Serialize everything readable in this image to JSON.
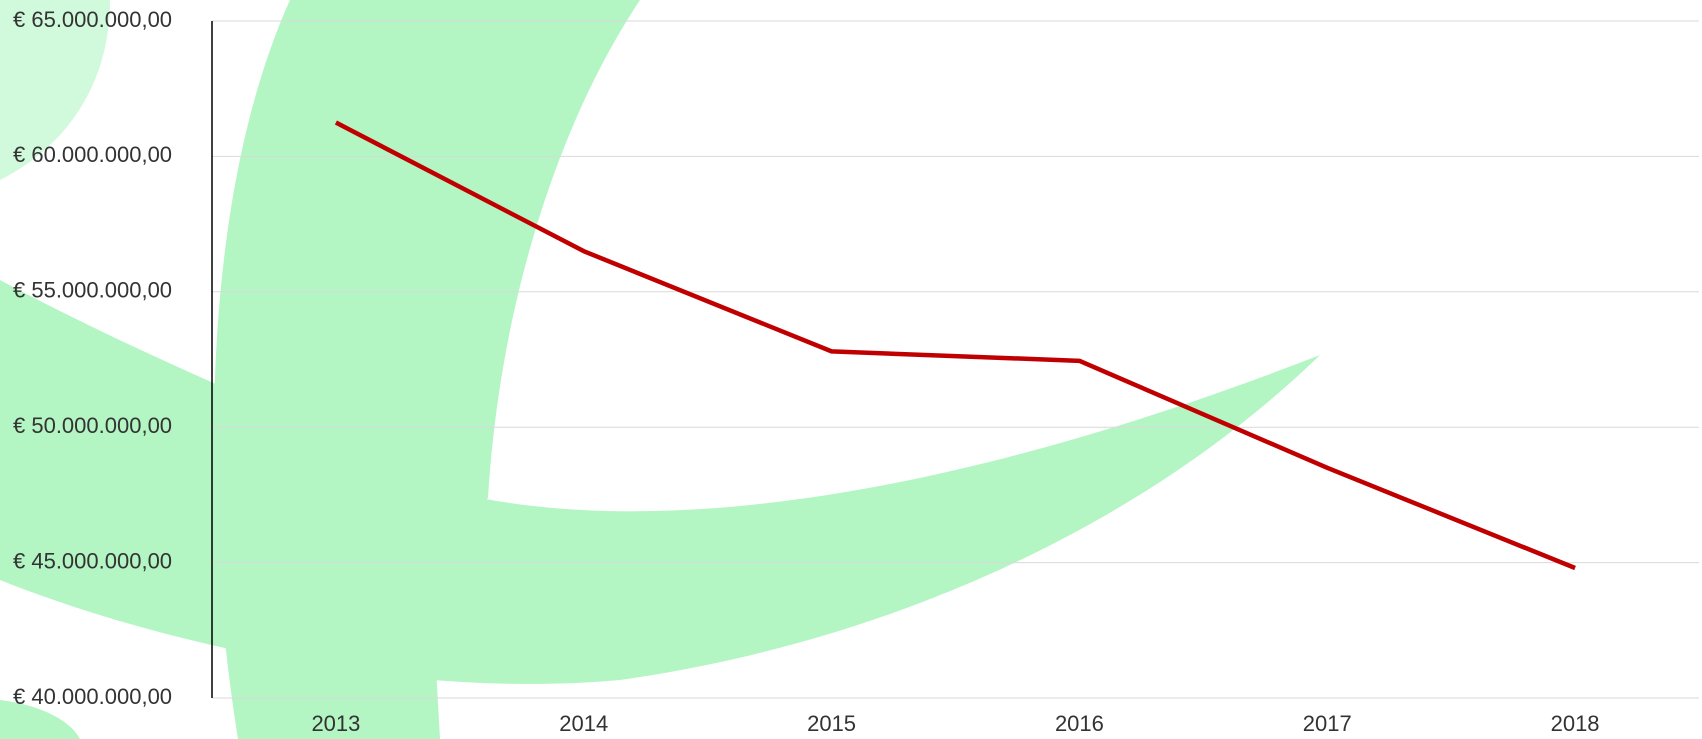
{
  "chart_data": {
    "type": "line",
    "categories": [
      "2013",
      "2014",
      "2015",
      "2016",
      "2017",
      "2018"
    ],
    "series": [
      {
        "name": null,
        "color": "#c00000",
        "values": [
          61250000,
          56500000,
          52800000,
          52450000,
          48500000,
          44800000
        ]
      }
    ],
    "ylim": [
      40000000,
      65000000
    ],
    "yticks": [
      {
        "value": 40000000,
        "label": "€ 40.000.000,00"
      },
      {
        "value": 45000000,
        "label": "€ 45.000.000,00"
      },
      {
        "value": 50000000,
        "label": "€ 50.000.000,00"
      },
      {
        "value": 55000000,
        "label": "€ 55.000.000,00"
      },
      {
        "value": 60000000,
        "label": "€ 60.000.000,00"
      },
      {
        "value": 65000000,
        "label": "€ 65.000.000,00"
      }
    ],
    "grid": true
  }
}
